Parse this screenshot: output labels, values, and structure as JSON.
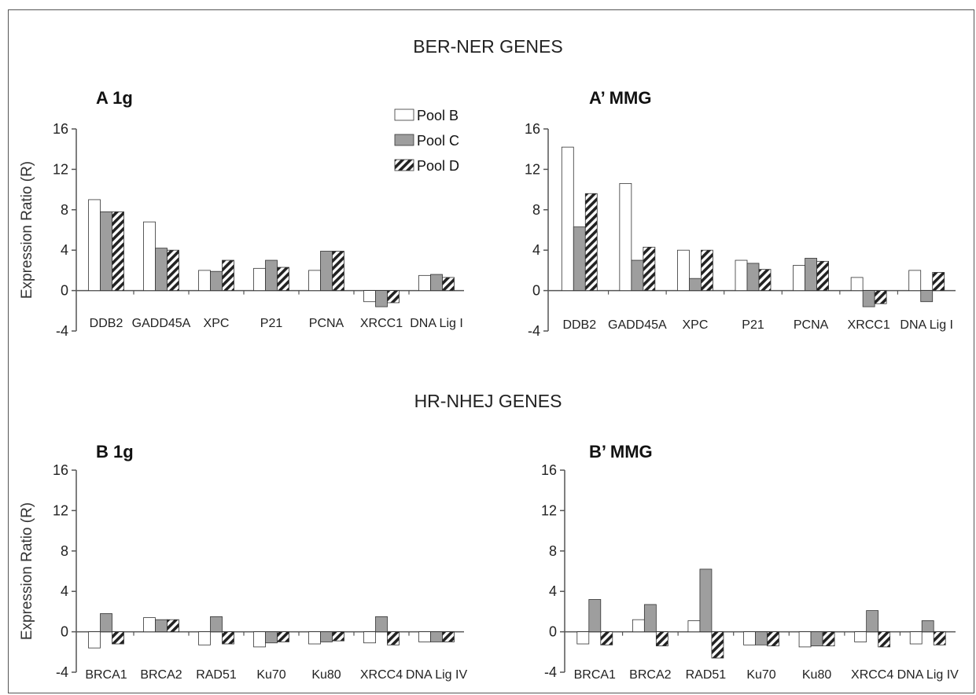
{
  "sections": {
    "top_title": "BER-NER GENES",
    "bottom_title": "HR-NHEJ GENES"
  },
  "legend": {
    "items": [
      {
        "label": "Pool B",
        "pattern": "white"
      },
      {
        "label": "Pool C",
        "pattern": "gray"
      },
      {
        "label": "Pool D",
        "pattern": "hatch"
      }
    ]
  },
  "colors": {
    "pool_b": "#ffffff",
    "pool_c": "#9e9e9e",
    "pool_d_hatch": "#222222",
    "axis": "#555555"
  },
  "chart_data": [
    {
      "id": "A",
      "type": "bar",
      "title": "A  1g",
      "ylabel": "Expression Ratio (R)",
      "ylim": [
        -4,
        16
      ],
      "yticks": [
        -4,
        0,
        4,
        8,
        12,
        16
      ],
      "categories": [
        "DDB2",
        "GADD45A",
        "XPC",
        "P21",
        "PCNA",
        "XRCC1",
        "DNA Lig I"
      ],
      "series": [
        {
          "name": "Pool B",
          "values": [
            9.0,
            6.8,
            2.0,
            2.2,
            2.0,
            -1.1,
            1.5
          ]
        },
        {
          "name": "Pool C",
          "values": [
            7.8,
            4.2,
            1.9,
            3.0,
            3.9,
            -1.6,
            1.6
          ]
        },
        {
          "name": "Pool D",
          "values": [
            7.8,
            4.0,
            3.0,
            2.3,
            3.9,
            -1.2,
            1.3
          ]
        }
      ]
    },
    {
      "id": "A2",
      "type": "bar",
      "title": "A’ MMG",
      "ylabel": "",
      "ylim": [
        -4,
        16
      ],
      "yticks": [
        -4,
        0,
        4,
        8,
        12,
        16
      ],
      "categories": [
        "DDB2",
        "GADD45A",
        "XPC",
        "P21",
        "PCNA",
        "XRCC1",
        "DNA Lig I"
      ],
      "series": [
        {
          "name": "Pool B",
          "values": [
            14.2,
            10.6,
            4.0,
            3.0,
            2.5,
            1.3,
            2.0
          ]
        },
        {
          "name": "Pool C",
          "values": [
            6.3,
            3.0,
            1.2,
            2.7,
            3.2,
            -1.6,
            -1.1
          ]
        },
        {
          "name": "Pool D",
          "values": [
            9.6,
            4.3,
            4.0,
            2.1,
            2.9,
            -1.3,
            1.8
          ]
        }
      ]
    },
    {
      "id": "B",
      "type": "bar",
      "title": "B  1g",
      "ylabel": "Expression Ratio (R)",
      "ylim": [
        -4,
        16
      ],
      "yticks": [
        -4,
        0,
        4,
        8,
        12,
        16
      ],
      "categories": [
        "BRCA1",
        "BRCA2",
        "RAD51",
        "Ku70",
        "Ku80",
        "XRCC4",
        "DNA Lig IV"
      ],
      "series": [
        {
          "name": "Pool B",
          "values": [
            -1.6,
            1.4,
            -1.3,
            -1.5,
            -1.2,
            -1.1,
            -1.0
          ]
        },
        {
          "name": "Pool C",
          "values": [
            1.8,
            1.2,
            1.5,
            -1.1,
            -1.0,
            1.5,
            -1.0
          ]
        },
        {
          "name": "Pool D",
          "values": [
            -1.2,
            1.2,
            -1.2,
            -1.0,
            -0.9,
            -1.3,
            -1.0
          ]
        }
      ]
    },
    {
      "id": "B2",
      "type": "bar",
      "title": "B’ MMG",
      "ylabel": "",
      "ylim": [
        -4,
        16
      ],
      "yticks": [
        -4,
        0,
        4,
        8,
        12,
        16
      ],
      "categories": [
        "BRCA1",
        "BRCA2",
        "RAD51",
        "Ku70",
        "Ku80",
        "XRCC4",
        "DNA Lig IV"
      ],
      "series": [
        {
          "name": "Pool B",
          "values": [
            -1.2,
            1.2,
            1.1,
            -1.3,
            -1.5,
            -1.0,
            -1.2
          ]
        },
        {
          "name": "Pool C",
          "values": [
            3.2,
            2.7,
            6.2,
            -1.3,
            -1.4,
            2.1,
            1.1
          ]
        },
        {
          "name": "Pool D",
          "values": [
            -1.3,
            -1.4,
            -2.6,
            -1.4,
            -1.4,
            -1.5,
            -1.3
          ]
        }
      ]
    }
  ]
}
